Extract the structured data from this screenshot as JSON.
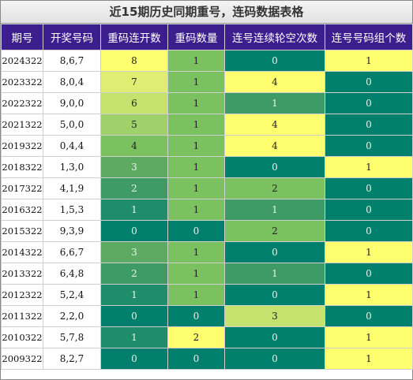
{
  "title": "近15期历史同期重号，连码数据表格",
  "headers": [
    "期号",
    "开奖号码",
    "重码连开数",
    "重码数量",
    "连号连续轮空次数",
    "连号号码组个数"
  ],
  "colors": {
    "yellow": "#fefe6e",
    "lime_1": "#dfee73",
    "lime_2": "#c5e26e",
    "green_mid": "#9ed169",
    "green_light": "#7bc160",
    "green_medium": "#5daa63",
    "green_sea": "#3f9b65",
    "green_dark": "#208d6a",
    "teal": "#00806c"
  },
  "rows": [
    {
      "period": "2024322",
      "draw": "8,6,7",
      "repeat_streak": "8",
      "repeat_count": "1",
      "consec_miss": "0",
      "consec_groups": "1"
    },
    {
      "period": "2023322",
      "draw": "8,0,4",
      "repeat_streak": "7",
      "repeat_count": "1",
      "consec_miss": "4",
      "consec_groups": "0"
    },
    {
      "period": "2022322",
      "draw": "9,0,0",
      "repeat_streak": "6",
      "repeat_count": "1",
      "consec_miss": "1",
      "consec_groups": "0"
    },
    {
      "period": "2021322",
      "draw": "5,0,0",
      "repeat_streak": "5",
      "repeat_count": "1",
      "consec_miss": "4",
      "consec_groups": "0"
    },
    {
      "period": "2019322",
      "draw": "0,4,4",
      "repeat_streak": "4",
      "repeat_count": "1",
      "consec_miss": "4",
      "consec_groups": "0"
    },
    {
      "period": "2018322",
      "draw": "1,3,0",
      "repeat_streak": "3",
      "repeat_count": "1",
      "consec_miss": "0",
      "consec_groups": "1"
    },
    {
      "period": "2017322",
      "draw": "4,1,9",
      "repeat_streak": "2",
      "repeat_count": "1",
      "consec_miss": "2",
      "consec_groups": "0"
    },
    {
      "period": "2016322",
      "draw": "1,5,3",
      "repeat_streak": "1",
      "repeat_count": "1",
      "consec_miss": "1",
      "consec_groups": "0"
    },
    {
      "period": "2015322",
      "draw": "9,3,9",
      "repeat_streak": "0",
      "repeat_count": "0",
      "consec_miss": "2",
      "consec_groups": "0"
    },
    {
      "period": "2014322",
      "draw": "6,6,7",
      "repeat_streak": "3",
      "repeat_count": "1",
      "consec_miss": "0",
      "consec_groups": "1"
    },
    {
      "period": "2013322",
      "draw": "6,4,8",
      "repeat_streak": "2",
      "repeat_count": "1",
      "consec_miss": "1",
      "consec_groups": "0"
    },
    {
      "period": "2012322",
      "draw": "5,2,4",
      "repeat_streak": "1",
      "repeat_count": "1",
      "consec_miss": "0",
      "consec_groups": "1"
    },
    {
      "period": "2011322",
      "draw": "2,2,0",
      "repeat_streak": "0",
      "repeat_count": "0",
      "consec_miss": "3",
      "consec_groups": "0"
    },
    {
      "period": "2010322",
      "draw": "5,7,8",
      "repeat_streak": "1",
      "repeat_count": "2",
      "consec_miss": "0",
      "consec_groups": "1"
    },
    {
      "period": "2009322",
      "draw": "8,2,7",
      "repeat_streak": "0",
      "repeat_count": "0",
      "consec_miss": "0",
      "consec_groups": "1"
    }
  ]
}
